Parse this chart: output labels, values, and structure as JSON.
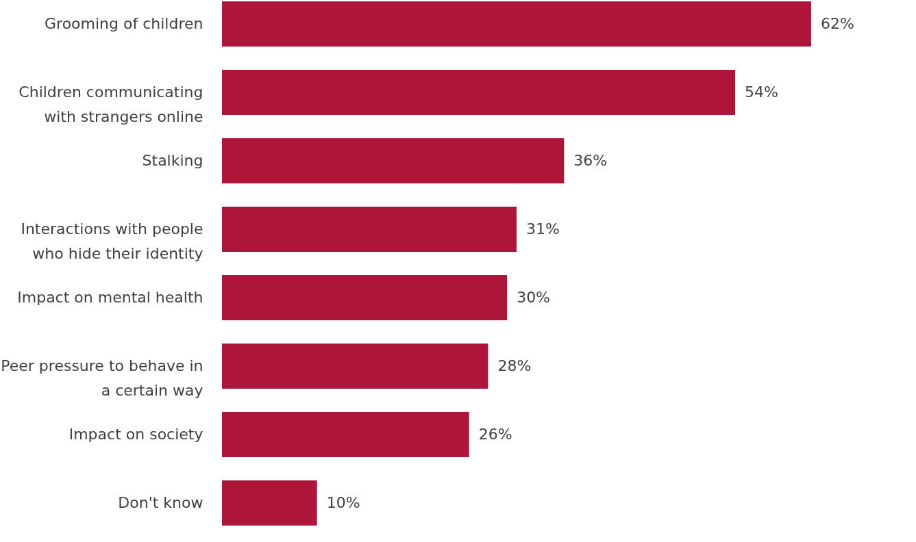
{
  "chart_data": {
    "type": "bar",
    "orientation": "horizontal",
    "categories": [
      "Grooming of children",
      "Children communicating with strangers online",
      "Stalking",
      "Interactions with people who hide their identity",
      "Impact on mental health",
      "Peer pressure to behave in a certain way",
      "Impact on society",
      "Don't know"
    ],
    "values": [
      62,
      54,
      36,
      31,
      30,
      28,
      26,
      10
    ],
    "value_labels": [
      "62%",
      "54%",
      "36%",
      "31%",
      "30%",
      "28%",
      "26%",
      "10%"
    ],
    "color": "#ae1639"
  }
}
